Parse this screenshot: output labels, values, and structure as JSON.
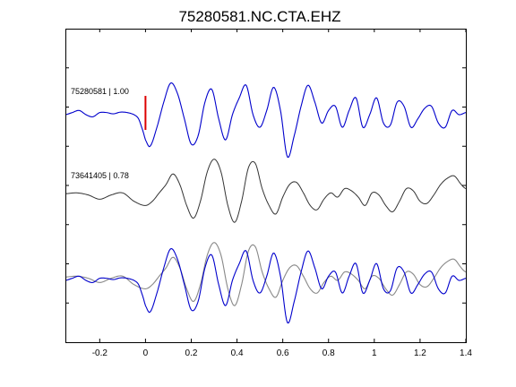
{
  "chart_data": {
    "type": "line",
    "title": "75280581.NC.CTA.EHZ",
    "xlabel": "",
    "ylabel": "",
    "xlim": [
      -0.35,
      1.4
    ],
    "x_ticks": [
      -0.2,
      0,
      0.2,
      0.4,
      0.6,
      0.8,
      1,
      1.2,
      1.4
    ],
    "x_tick_labels": [
      "-0.2",
      "0",
      "0.2",
      "0.4",
      "0.6",
      "0.8",
      "1",
      "1.2",
      "1.4"
    ],
    "grid": false,
    "pick_marker": {
      "x": 0,
      "color": "#dd0000"
    },
    "traces": [
      {
        "label": "75280581 | 1.00",
        "color": "#0000cc",
        "offset": 2,
        "t": [
          -0.35,
          -0.32,
          -0.29,
          -0.26,
          -0.23,
          -0.2,
          -0.17,
          -0.14,
          -0.11,
          -0.08,
          -0.05,
          -0.03,
          -0.01,
          0.0,
          0.02,
          0.05,
          0.08,
          0.11,
          0.14,
          0.17,
          0.2,
          0.23,
          0.26,
          0.29,
          0.32,
          0.35,
          0.38,
          0.41,
          0.44,
          0.47,
          0.5,
          0.53,
          0.56,
          0.59,
          0.62,
          0.65,
          0.68,
          0.71,
          0.74,
          0.77,
          0.8,
          0.83,
          0.86,
          0.89,
          0.92,
          0.95,
          0.98,
          1.01,
          1.04,
          1.07,
          1.1,
          1.13,
          1.16,
          1.19,
          1.22,
          1.25,
          1.28,
          1.31,
          1.34,
          1.37,
          1.4
        ],
        "amp": [
          0.0,
          0.05,
          0.1,
          0.0,
          -0.05,
          0.05,
          0.05,
          0.02,
          0.06,
          0.05,
          0.0,
          -0.1,
          -0.4,
          -0.6,
          -0.75,
          -0.3,
          0.3,
          0.75,
          0.5,
          -0.1,
          -0.7,
          -0.5,
          0.3,
          0.6,
          -0.1,
          -0.6,
          0.0,
          0.4,
          0.7,
          0.0,
          -0.3,
          0.1,
          0.65,
          0.1,
          -1.0,
          -0.5,
          0.2,
          0.7,
          0.3,
          -0.2,
          0.1,
          0.2,
          -0.3,
          0.1,
          0.4,
          -0.3,
          0.0,
          0.4,
          -0.2,
          -0.25,
          0.3,
          0.2,
          -0.3,
          -0.1,
          0.15,
          0.2,
          -0.2,
          -0.3,
          0.1,
          0.0,
          0.05
        ]
      },
      {
        "label": "73641405 | 0.78",
        "color": "#333333",
        "offset": 1,
        "t": [
          -0.35,
          -0.3,
          -0.25,
          -0.2,
          -0.15,
          -0.1,
          -0.05,
          0.0,
          0.03,
          0.06,
          0.09,
          0.12,
          0.15,
          0.18,
          0.21,
          0.24,
          0.27,
          0.3,
          0.33,
          0.36,
          0.39,
          0.42,
          0.45,
          0.48,
          0.51,
          0.54,
          0.57,
          0.6,
          0.63,
          0.66,
          0.69,
          0.72,
          0.75,
          0.78,
          0.81,
          0.84,
          0.87,
          0.9,
          0.93,
          0.96,
          0.99,
          1.02,
          1.05,
          1.08,
          1.11,
          1.14,
          1.17,
          1.2,
          1.23,
          1.26,
          1.29,
          1.32,
          1.35,
          1.38,
          1.4
        ],
        "amp": [
          0.08,
          0.1,
          0.05,
          -0.05,
          0.05,
          0.1,
          -0.1,
          -0.2,
          -0.1,
          0.1,
          0.3,
          0.55,
          0.3,
          -0.2,
          -0.5,
          -0.1,
          0.6,
          0.9,
          0.6,
          -0.2,
          -0.6,
          -0.1,
          0.7,
          0.8,
          0.2,
          -0.2,
          -0.4,
          0.0,
          0.3,
          0.35,
          0.1,
          -0.2,
          -0.3,
          -0.05,
          0.1,
          0.0,
          0.2,
          0.15,
          0.0,
          -0.2,
          0.1,
          0.05,
          -0.2,
          -0.35,
          -0.1,
          0.2,
          0.15,
          -0.1,
          -0.15,
          0.05,
          0.3,
          0.45,
          0.5,
          0.3,
          0.2
        ]
      }
    ],
    "overlay": {
      "offset": 0
    }
  }
}
